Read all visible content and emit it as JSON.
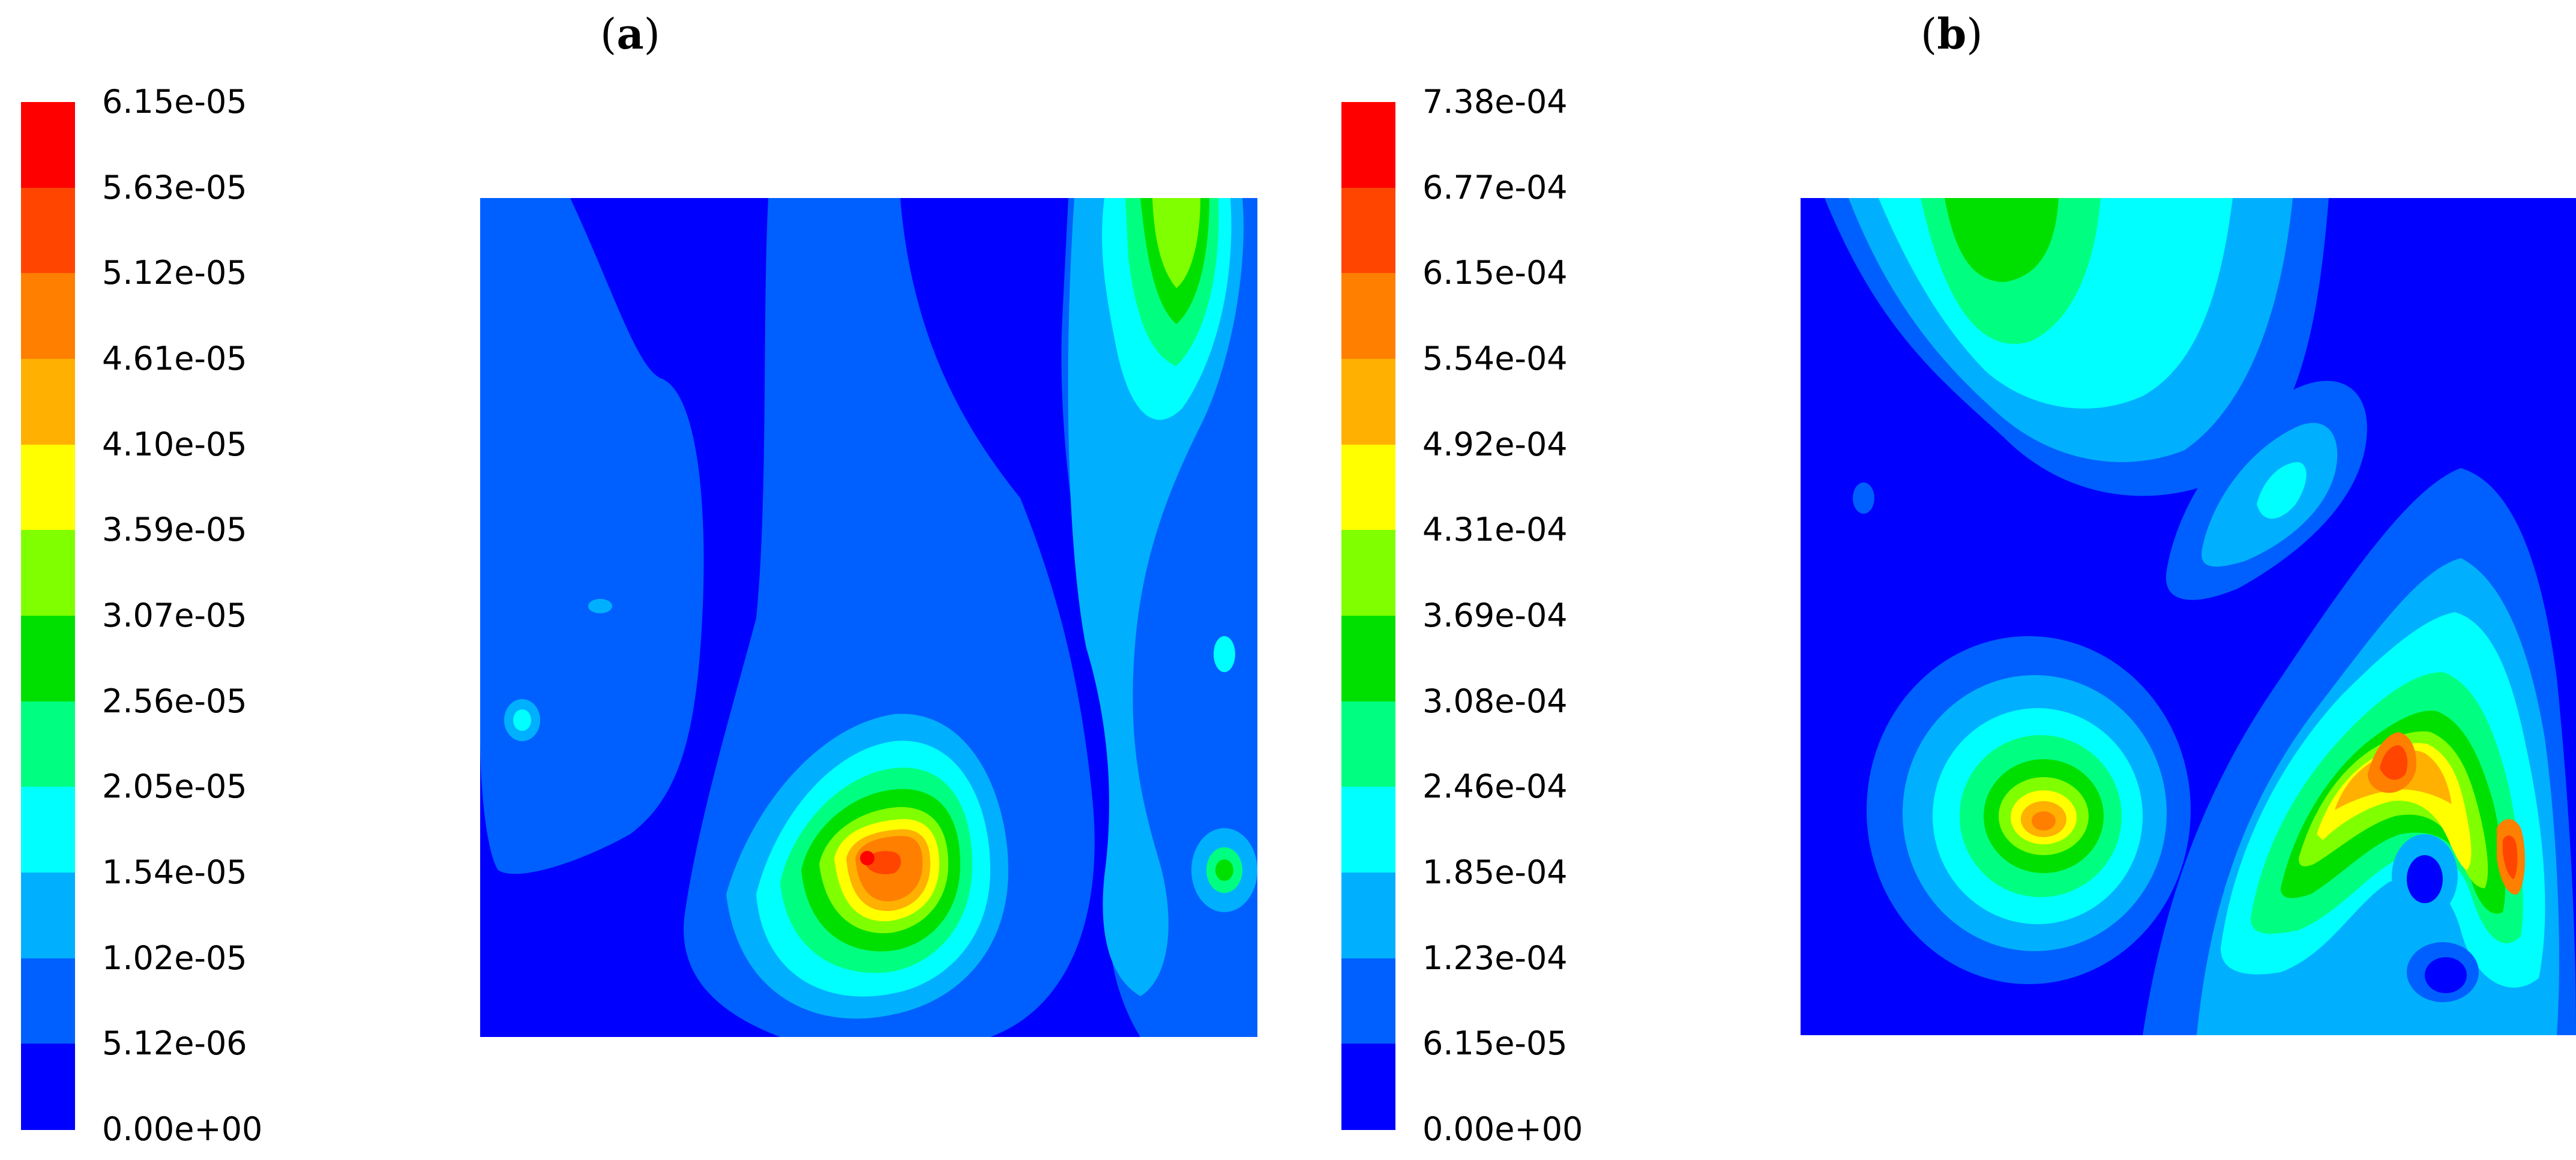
{
  "panels": [
    {
      "label": "a",
      "colorbar": {
        "ticks": [
          "6.15e-05",
          "5.63e-05",
          "5.12e-05",
          "4.61e-05",
          "4.10e-05",
          "3.59e-05",
          "3.07e-05",
          "2.56e-05",
          "2.05e-05",
          "1.54e-05",
          "1.02e-05",
          "5.12e-06",
          "0.00e+00"
        ]
      }
    },
    {
      "label": "b",
      "colorbar": {
        "ticks": [
          "7.38e-04",
          "6.77e-04",
          "6.15e-04",
          "5.54e-04",
          "4.92e-04",
          "4.31e-04",
          "3.69e-04",
          "3.08e-04",
          "2.46e-04",
          "1.85e-04",
          "1.23e-04",
          "6.15e-05",
          "0.00e+00"
        ]
      }
    }
  ],
  "colormap": [
    "#FF0000",
    "#FF4500",
    "#FF7F00",
    "#FFB000",
    "#FFFF00",
    "#80FF00",
    "#00E000",
    "#00FF80",
    "#00FFFF",
    "#00B0FF",
    "#0060FF",
    "#0000FF"
  ]
}
